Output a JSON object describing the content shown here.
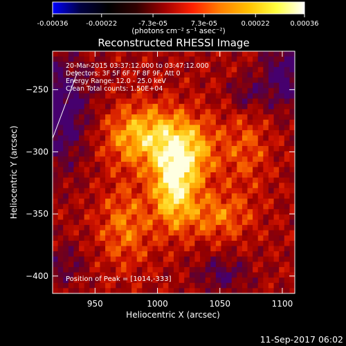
{
  "colorbar": {
    "min": -0.00036,
    "max": 0.00036,
    "tick_labels": [
      "-0.00036",
      "-0.00022",
      "-7.3e-05",
      "7.3e-05",
      "0.00022",
      "0.00036"
    ],
    "tick_values": [
      -0.00036,
      -0.00022,
      -7.3e-05,
      7.3e-05,
      0.00022,
      0.00036
    ],
    "units_label": "(photons cm⁻² s⁻¹ asec⁻²)",
    "stops": [
      "#0000ff",
      "#000040",
      "#000000",
      "#300000",
      "#a00000",
      "#ff2000",
      "#ff8000",
      "#ffc000",
      "#ffff40",
      "#ffffff"
    ]
  },
  "chart_data": {
    "type": "heatmap",
    "title": "Reconstructed RHESSI Image",
    "xlabel": "Heliocentric X (arcsec)",
    "ylabel": "Heliocentric Y (arcsec)",
    "xlim": [
      916,
      1110
    ],
    "ylim": [
      -414,
      -219
    ],
    "xticks": [
      950,
      1000,
      1050,
      1100
    ],
    "yticks": [
      -250,
      -300,
      -350,
      -400
    ],
    "annotations": [
      "20-Mar-2015 03:37:12.000 to 03:47:12.000",
      "Detectors: 3F 5F 6F 7F 8F 9F, Att 0",
      "Energy Range: 12.0 - 25.0 keV",
      "Clean     Total counts: 1.50E+04"
    ],
    "peak_label": "Position of Peak = [1014,-333]",
    "peak": [
      1014,
      -333
    ]
  },
  "footer": {
    "timestamp": "11-Sep-2017 06:02"
  }
}
